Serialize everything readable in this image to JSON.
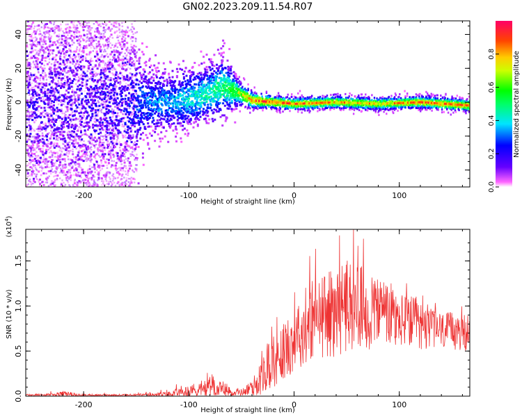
{
  "title": "GN02.2023.209.11.54.R07",
  "chart_data": [
    {
      "type": "heatmap",
      "xlabel": "Height of straight line (km)",
      "ylabel": "Frequency (Hz)",
      "xlim": [
        -255,
        167
      ],
      "ylim": [
        -50,
        48
      ],
      "x_ticks": [
        -200,
        -100,
        0,
        100
      ],
      "y_ticks": [
        -40,
        -20,
        0,
        20,
        40
      ],
      "colorbar": {
        "label": "Normalized spectral amplitude",
        "range": [
          0.0,
          1.0
        ],
        "ticks": [
          "0.0",
          "0.2",
          "0.4",
          "0.6",
          "0.8"
        ],
        "tick_values": [
          0.0,
          0.2,
          0.4,
          0.6,
          0.8
        ]
      },
      "ridge": [
        {
          "x": -250,
          "f": -3,
          "spread": 18,
          "amp": 0.15
        },
        {
          "x": -200,
          "f": 0,
          "spread": 18,
          "amp": 0.15
        },
        {
          "x": -160,
          "f": -2,
          "spread": 14,
          "amp": 0.2
        },
        {
          "x": -140,
          "f": 0,
          "spread": 7,
          "amp": 0.3
        },
        {
          "x": -120,
          "f": 0,
          "spread": 6,
          "amp": 0.35
        },
        {
          "x": -100,
          "f": 2,
          "spread": 6,
          "amp": 0.4
        },
        {
          "x": -80,
          "f": 6,
          "spread": 6,
          "amp": 0.45
        },
        {
          "x": -68,
          "f": 9,
          "spread": 6,
          "amp": 0.5
        },
        {
          "x": -55,
          "f": 6,
          "spread": 3,
          "amp": 0.6
        },
        {
          "x": -40,
          "f": 1,
          "spread": 2,
          "amp": 0.8
        },
        {
          "x": -20,
          "f": 0,
          "spread": 1.5,
          "amp": 0.85
        },
        {
          "x": 0,
          "f": -1,
          "spread": 1.5,
          "amp": 0.8
        },
        {
          "x": 40,
          "f": 0,
          "spread": 1.5,
          "amp": 0.75
        },
        {
          "x": 80,
          "f": -1,
          "spread": 1.5,
          "amp": 0.72
        },
        {
          "x": 120,
          "f": 0,
          "spread": 1.5,
          "amp": 0.8
        },
        {
          "x": 167,
          "f": -2,
          "spread": 1.5,
          "amp": 0.8
        }
      ]
    },
    {
      "type": "line",
      "xlabel": "Height of straight line (km)",
      "ylabel": "SNR (10 * v/v)",
      "scale_label": "(x10",
      "scale_exponent": "4",
      "scale_close": ")",
      "xlim": [
        -255,
        167
      ],
      "ylim": [
        0,
        1.85
      ],
      "x_ticks": [
        -200,
        -100,
        0,
        100
      ],
      "y_ticks": [
        0.0,
        0.5,
        1.0,
        1.5
      ],
      "y_tick_labels": [
        "0.0",
        "0.5",
        "1.0",
        "1.5"
      ],
      "series": [
        {
          "color": "#ee3333",
          "envelope": {
            "x": [
              -255,
              -230,
              -220,
              -200,
              -160,
              -140,
              -120,
              -100,
              -90,
              -80,
              -70,
              -60,
              -50,
              -40,
              -30,
              -25,
              -20,
              -10,
              0,
              10,
              20,
              30,
              40,
              50,
              60,
              70,
              80,
              90,
              100,
              110,
              120,
              130,
              140,
              150,
              167
            ],
            "base": [
              0.01,
              0.01,
              0.02,
              0.01,
              0.01,
              0.01,
              0.02,
              0.04,
              0.06,
              0.08,
              0.06,
              0.04,
              0.04,
              0.08,
              0.2,
              0.3,
              0.35,
              0.45,
              0.6,
              0.7,
              0.8,
              0.85,
              0.9,
              0.95,
              0.95,
              0.9,
              0.9,
              0.85,
              0.8,
              0.8,
              0.75,
              0.75,
              0.7,
              0.7,
              0.65
            ],
            "amp": [
              0.02,
              0.03,
              0.06,
              0.02,
              0.02,
              0.03,
              0.05,
              0.12,
              0.15,
              0.25,
              0.15,
              0.08,
              0.06,
              0.15,
              0.35,
              0.4,
              0.5,
              0.55,
              0.6,
              0.65,
              0.7,
              0.8,
              0.85,
              0.85,
              0.8,
              0.75,
              0.7,
              0.65,
              0.55,
              0.5,
              0.45,
              0.4,
              0.35,
              0.35,
              0.3
            ]
          }
        }
      ]
    }
  ]
}
